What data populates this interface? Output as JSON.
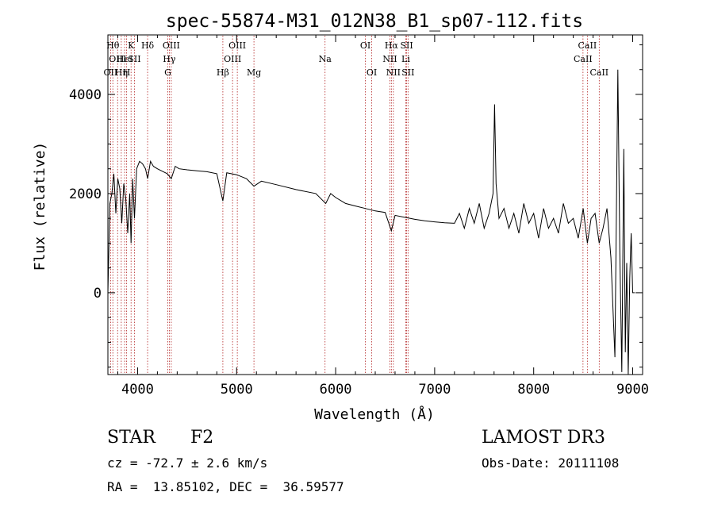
{
  "chart_data": {
    "type": "line",
    "title": "spec-55874-M31_012N38_B1_sp07-112.fits",
    "xlabel": "Wavelength (Å)",
    "ylabel": "Flux (relative)",
    "xlim": [
      3700,
      9100
    ],
    "ylim": [
      -1650,
      5200
    ],
    "xticks": [
      4000,
      5000,
      6000,
      7000,
      8000,
      9000
    ],
    "yticks": [
      0,
      2000,
      4000
    ],
    "series": [
      {
        "name": "flux",
        "x": [
          3700,
          3720,
          3740,
          3760,
          3780,
          3800,
          3820,
          3840,
          3860,
          3880,
          3900,
          3920,
          3934,
          3950,
          3968,
          3990,
          4020,
          4050,
          4080,
          4101,
          4130,
          4160,
          4200,
          4250,
          4300,
          4340,
          4380,
          4420,
          4500,
          4600,
          4700,
          4800,
          4861,
          4900,
          5000,
          5100,
          5175,
          5250,
          5400,
          5600,
          5800,
          5900,
          5950,
          6000,
          6100,
          6200,
          6300,
          6400,
          6500,
          6563,
          6600,
          6700,
          6800,
          6900,
          7000,
          7100,
          7200,
          7250,
          7300,
          7350,
          7400,
          7450,
          7500,
          7550,
          7590,
          7605,
          7620,
          7650,
          7700,
          7750,
          7800,
          7850,
          7900,
          7950,
          8000,
          8050,
          8100,
          8150,
          8200,
          8250,
          8300,
          8350,
          8400,
          8450,
          8500,
          8542,
          8580,
          8620,
          8662,
          8700,
          8740,
          8780,
          8820,
          8850,
          8870,
          8890,
          8910,
          8925,
          8940,
          8955,
          8970,
          8985,
          9000,
          9020
        ],
        "y": [
          0,
          1800,
          2000,
          2400,
          1600,
          2300,
          2100,
          1400,
          2200,
          1900,
          1200,
          2000,
          1000,
          2300,
          1500,
          2500,
          2650,
          2600,
          2500,
          2300,
          2650,
          2550,
          2500,
          2450,
          2400,
          2300,
          2550,
          2500,
          2480,
          2460,
          2440,
          2400,
          1850,
          2420,
          2380,
          2300,
          2150,
          2250,
          2180,
          2080,
          2000,
          1800,
          2000,
          1920,
          1800,
          1750,
          1700,
          1650,
          1620,
          1250,
          1560,
          1520,
          1480,
          1450,
          1430,
          1410,
          1400,
          1600,
          1300,
          1700,
          1400,
          1800,
          1300,
          1600,
          2000,
          3800,
          2200,
          1500,
          1700,
          1300,
          1600,
          1200,
          1800,
          1400,
          1600,
          1100,
          1700,
          1300,
          1500,
          1200,
          1800,
          1400,
          1500,
          1100,
          1700,
          1000,
          1500,
          1600,
          1000,
          1300,
          1700,
          700,
          -1300,
          4500,
          800,
          -1600,
          2900,
          -1200,
          600,
          -1700,
          300,
          1200,
          0,
          0
        ]
      }
    ],
    "lines": [
      {
        "wl": 3727,
        "name": "OII",
        "row": 2
      },
      {
        "wl": 3750,
        "name": "Hθ",
        "row": 0
      },
      {
        "wl": 3798,
        "name": "OIII",
        "row": 1
      },
      {
        "wl": 3835,
        "name": "Hη",
        "row": 2
      },
      {
        "wl": 3869,
        "name": "HeI",
        "row": 1
      },
      {
        "wl": 3889,
        "name": "H",
        "row": 2
      },
      {
        "wl": 3934,
        "name": "K",
        "row": 0
      },
      {
        "wl": 3968,
        "name": "SII",
        "row": 1
      },
      {
        "wl": 4101,
        "name": "Hδ",
        "row": 0
      },
      {
        "wl": 4305,
        "name": "G",
        "row": 2
      },
      {
        "wl": 4320,
        "name": "Hγ",
        "row": 1
      },
      {
        "wl": 4340,
        "name": "OIII",
        "row": 0
      },
      {
        "wl": 4861,
        "name": "Hβ",
        "row": 2
      },
      {
        "wl": 4959,
        "name": "OIII",
        "row": 1
      },
      {
        "wl": 5007,
        "name": "OIII",
        "row": 0
      },
      {
        "wl": 5175,
        "name": "Mg",
        "row": 2
      },
      {
        "wl": 5893,
        "name": "Na",
        "row": 1
      },
      {
        "wl": 6300,
        "name": "OI",
        "row": 0
      },
      {
        "wl": 6364,
        "name": "OI",
        "row": 2
      },
      {
        "wl": 6548,
        "name": "NII",
        "row": 1
      },
      {
        "wl": 6563,
        "name": "Hα",
        "row": 0
      },
      {
        "wl": 6583,
        "name": "NII",
        "row": 2
      },
      {
        "wl": 6708,
        "name": "Li",
        "row": 1
      },
      {
        "wl": 6717,
        "name": "SII",
        "row": 0
      },
      {
        "wl": 6731,
        "name": "SII",
        "row": 2
      },
      {
        "wl": 8498,
        "name": "CaII",
        "row": 1
      },
      {
        "wl": 8542,
        "name": "CaII",
        "row": 0
      },
      {
        "wl": 8662,
        "name": "CaII",
        "row": 2
      }
    ]
  },
  "info": {
    "class": "STAR",
    "subclass": "F2",
    "survey": "LAMOST DR3",
    "cz": "cz = -72.7 ± 2.6 km/s",
    "obs_date": "Obs-Date: 20111108",
    "radec": "RA =  13.85102, DEC =  36.59577"
  }
}
